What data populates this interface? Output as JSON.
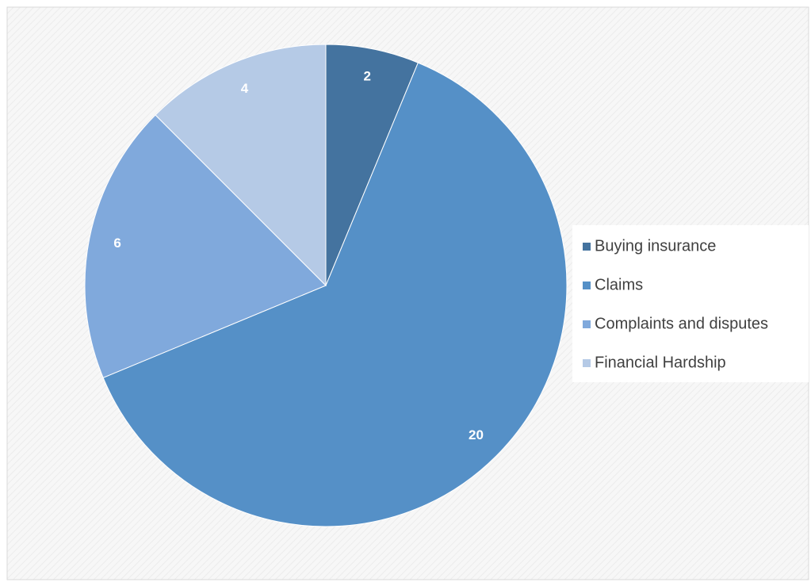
{
  "chart_data": {
    "type": "pie",
    "categories": [
      "Buying insurance",
      "Claims",
      "Complaints and disputes",
      "Financial Hardship"
    ],
    "values": [
      2,
      20,
      6,
      4
    ],
    "colors": [
      "#44739f",
      "#5590c7",
      "#80a9dc",
      "#b5cae6"
    ],
    "start_angle": 0,
    "direction": "clockwise",
    "legend": "right"
  }
}
